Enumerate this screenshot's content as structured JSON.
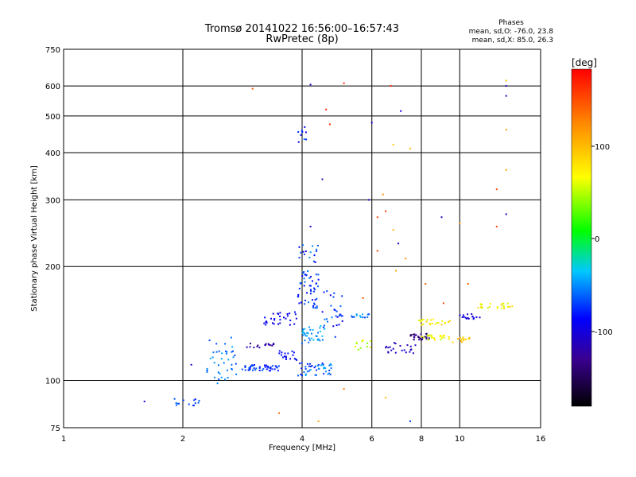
{
  "chart_data": {
    "type": "scatter",
    "title": "Tromsø 20141022 16:56:00–16:57:43",
    "subtitle": "RwPretec (8p)",
    "xlabel": "Frequency [MHz]",
    "ylabel": "Stationary phase Virtual Height [km]",
    "x_scale": "log",
    "y_scale": "log",
    "xlim": [
      1,
      16
    ],
    "ylim": [
      75,
      750
    ],
    "x_ticks": [
      1,
      2,
      4,
      6,
      8,
      10,
      16
    ],
    "y_ticks": [
      75,
      100,
      200,
      300,
      400,
      500,
      600,
      750
    ],
    "grid": true,
    "stats": {
      "heading": "Phases",
      "line1": "mean, sd,O:  -76.0, 23.8",
      "line2": "mean, sd,X:  85.0, 26.3"
    },
    "colorbar": {
      "label": "[deg]",
      "ticks": [
        "100",
        "0",
        "-100"
      ],
      "range": [
        -180,
        180
      ]
    },
    "clusters": [
      {
        "f0": 1.85,
        "f1": 2.2,
        "h0": 85,
        "h1": 90,
        "n": 14,
        "p0": -80,
        "p1": -55
      },
      {
        "f0": 2.3,
        "f1": 2.75,
        "h0": 98,
        "h1": 130,
        "n": 40,
        "p0": -70,
        "p1": -40
      },
      {
        "f0": 2.8,
        "f1": 3.5,
        "h0": 106,
        "h1": 110,
        "n": 45,
        "p0": -90,
        "p1": -60
      },
      {
        "f0": 2.9,
        "f1": 3.4,
        "h0": 122,
        "h1": 126,
        "n": 18,
        "p0": -140,
        "p1": -110
      },
      {
        "f0": 3.2,
        "f1": 3.9,
        "h0": 140,
        "h1": 152,
        "n": 30,
        "p0": -100,
        "p1": -80
      },
      {
        "f0": 3.5,
        "f1": 3.9,
        "h0": 112,
        "h1": 120,
        "n": 18,
        "p0": -95,
        "p1": -70
      },
      {
        "f0": 3.9,
        "f1": 4.4,
        "h0": 155,
        "h1": 195,
        "n": 50,
        "p0": -95,
        "p1": -55
      },
      {
        "f0": 3.9,
        "f1": 4.8,
        "h0": 103,
        "h1": 112,
        "n": 45,
        "p0": -80,
        "p1": -40
      },
      {
        "f0": 4.0,
        "f1": 4.6,
        "h0": 125,
        "h1": 140,
        "n": 35,
        "p0": -60,
        "p1": -30
      },
      {
        "f0": 3.9,
        "f1": 4.4,
        "h0": 205,
        "h1": 228,
        "n": 16,
        "p0": -95,
        "p1": -45
      },
      {
        "f0": 3.9,
        "f1": 4.1,
        "h0": 425,
        "h1": 470,
        "n": 10,
        "p0": -100,
        "p1": -60
      },
      {
        "f0": 4.5,
        "f1": 5.1,
        "h0": 130,
        "h1": 175,
        "n": 30,
        "p0": -95,
        "p1": -50
      },
      {
        "f0": 5.3,
        "f1": 6.0,
        "h0": 120,
        "h1": 128,
        "n": 12,
        "p0": 30,
        "p1": 80
      },
      {
        "f0": 5.3,
        "f1": 6.0,
        "h0": 145,
        "h1": 150,
        "n": 14,
        "p0": -70,
        "p1": -40
      },
      {
        "f0": 6.5,
        "f1": 7.8,
        "h0": 118,
        "h1": 126,
        "n": 22,
        "p0": -120,
        "p1": -100
      },
      {
        "f0": 7.5,
        "f1": 8.4,
        "h0": 128,
        "h1": 133,
        "n": 30,
        "p0": -150,
        "p1": -120
      },
      {
        "f0": 7.8,
        "f1": 9.5,
        "h0": 140,
        "h1": 145,
        "n": 24,
        "p0": 50,
        "p1": 90
      },
      {
        "f0": 8.0,
        "f1": 9.4,
        "h0": 128,
        "h1": 132,
        "n": 24,
        "p0": 40,
        "p1": 85
      },
      {
        "f0": 9.6,
        "f1": 10.8,
        "h0": 126,
        "h1": 130,
        "n": 14,
        "p0": 80,
        "p1": 100
      },
      {
        "f0": 10.0,
        "f1": 11.3,
        "h0": 145,
        "h1": 150,
        "n": 16,
        "p0": -110,
        "p1": -90
      },
      {
        "f0": 11.0,
        "f1": 13.6,
        "h0": 155,
        "h1": 160,
        "n": 24,
        "p0": 50,
        "p1": 90
      }
    ],
    "points": [
      {
        "x": 3.0,
        "y": 590,
        "p": 145
      },
      {
        "x": 4.2,
        "y": 605,
        "p": -100
      },
      {
        "x": 4.6,
        "y": 520,
        "p": 165
      },
      {
        "x": 5.1,
        "y": 610,
        "p": 160
      },
      {
        "x": 4.7,
        "y": 475,
        "p": 160
      },
      {
        "x": 4.5,
        "y": 340,
        "p": -120
      },
      {
        "x": 6.7,
        "y": 600,
        "p": 170
      },
      {
        "x": 7.1,
        "y": 515,
        "p": -100
      },
      {
        "x": 6.0,
        "y": 480,
        "p": -100
      },
      {
        "x": 7.5,
        "y": 410,
        "p": 100
      },
      {
        "x": 6.8,
        "y": 420,
        "p": 90
      },
      {
        "x": 9.0,
        "y": 270,
        "p": -110
      },
      {
        "x": 13.1,
        "y": 620,
        "p": 100
      },
      {
        "x": 13.1,
        "y": 600,
        "p": -110
      },
      {
        "x": 13.1,
        "y": 565,
        "p": -110
      },
      {
        "x": 13.1,
        "y": 460,
        "p": 110
      },
      {
        "x": 13.1,
        "y": 360,
        "p": 110
      },
      {
        "x": 12.4,
        "y": 320,
        "p": 150
      },
      {
        "x": 13.1,
        "y": 275,
        "p": -110
      },
      {
        "x": 12.4,
        "y": 255,
        "p": 150
      },
      {
        "x": 6.2,
        "y": 270,
        "p": 150
      },
      {
        "x": 6.5,
        "y": 280,
        "p": 160
      },
      {
        "x": 6.8,
        "y": 250,
        "p": 100
      },
      {
        "x": 7.0,
        "y": 230,
        "p": -110
      },
      {
        "x": 7.3,
        "y": 210,
        "p": 120
      },
      {
        "x": 6.2,
        "y": 220,
        "p": 150
      },
      {
        "x": 5.9,
        "y": 300,
        "p": -100
      },
      {
        "x": 4.2,
        "y": 255,
        "p": -100
      },
      {
        "x": 2.1,
        "y": 110,
        "p": -110
      },
      {
        "x": 1.6,
        "y": 88,
        "p": -100
      },
      {
        "x": 3.5,
        "y": 82,
        "p": 140
      },
      {
        "x": 4.4,
        "y": 78,
        "p": 110
      },
      {
        "x": 7.5,
        "y": 78,
        "p": -70
      },
      {
        "x": 6.5,
        "y": 90,
        "p": 100
      },
      {
        "x": 5.1,
        "y": 95,
        "p": 130
      },
      {
        "x": 8.2,
        "y": 180,
        "p": 140
      },
      {
        "x": 10.5,
        "y": 180,
        "p": 140
      },
      {
        "x": 6.9,
        "y": 195,
        "p": 100
      },
      {
        "x": 5.7,
        "y": 165,
        "p": 140
      },
      {
        "x": 9.1,
        "y": 160,
        "p": 150
      },
      {
        "x": 10.0,
        "y": 260,
        "p": 120
      },
      {
        "x": 6.4,
        "y": 310,
        "p": 120
      }
    ]
  }
}
